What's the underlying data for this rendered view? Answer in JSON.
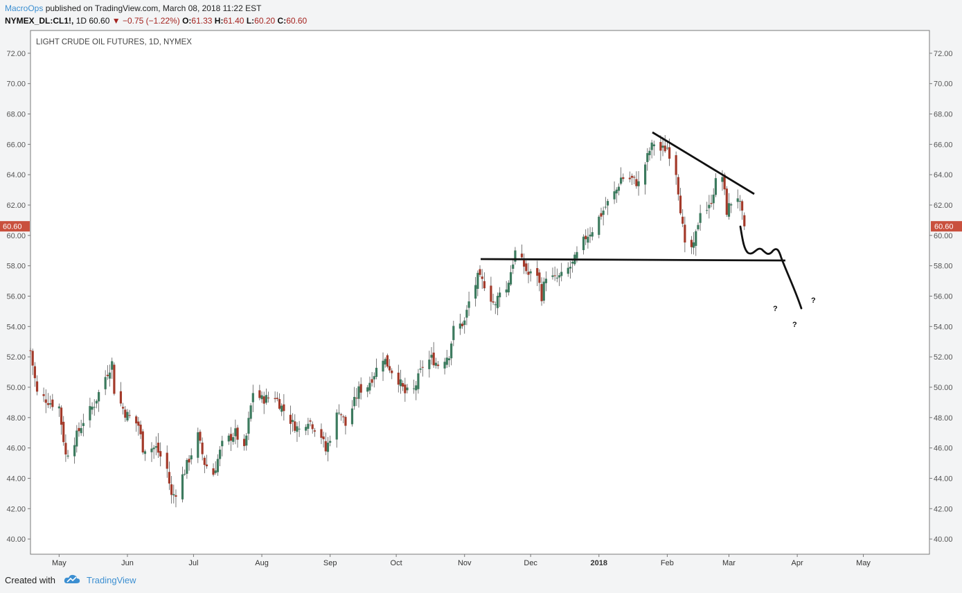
{
  "header": {
    "author": "MacroOps",
    "published": "published on TradingView.com, March 08, 2018 11:22 EST"
  },
  "symbol_bar": {
    "ticker": "NYMEX_DL:CL1!,",
    "interval": "1D",
    "price": "60.60",
    "direction_icon": "down-triangle-icon",
    "change": "−0.75 (−1.22%)",
    "open_label": "O:",
    "open": "61.33",
    "high_label": "H:",
    "high": "61.40",
    "low_label": "L:",
    "low": "60.20",
    "close_label": "C:",
    "close": "60.60"
  },
  "footer": {
    "created_with": "Created with",
    "brand": "TradingView"
  },
  "colors": {
    "up": "#3c7a5e",
    "down": "#a33a2a",
    "accent": "#3c8fd1",
    "price_tag": "#c9503d"
  },
  "chart_data": {
    "type": "candlestick",
    "title": "LIGHT CRUDE OIL FUTURES, 1D, NYMEX",
    "ylim": [
      39,
      73.5
    ],
    "yticks": [
      "40.00",
      "42.00",
      "44.00",
      "46.00",
      "48.00",
      "50.00",
      "52.00",
      "54.00",
      "56.00",
      "58.00",
      "60.00",
      "62.00",
      "64.00",
      "66.00",
      "68.00",
      "70.00",
      "72.00"
    ],
    "last_price_label": "60.60",
    "xrange": [
      "2017-04-18",
      "2018-05-31"
    ],
    "xticks": [
      {
        "date": "2017-05-01",
        "label": "May"
      },
      {
        "date": "2017-06-01",
        "label": "Jun"
      },
      {
        "date": "2017-07-01",
        "label": "Jul"
      },
      {
        "date": "2017-08-01",
        "label": "Aug"
      },
      {
        "date": "2017-09-01",
        "label": "Sep"
      },
      {
        "date": "2017-10-01",
        "label": "Oct"
      },
      {
        "date": "2017-11-01",
        "label": "Nov"
      },
      {
        "date": "2017-12-01",
        "label": "Dec"
      },
      {
        "date": "2018-01-01",
        "label": "2018",
        "bold": true
      },
      {
        "date": "2018-02-01",
        "label": "Feb"
      },
      {
        "date": "2018-03-01",
        "label": "Mar"
      },
      {
        "date": "2018-04-01",
        "label": "Apr"
      },
      {
        "date": "2018-05-01",
        "label": "May"
      }
    ],
    "close_anchors": [
      [
        "2017-04-18",
        52.4
      ],
      [
        "2017-04-21",
        49.6
      ],
      [
        "2017-04-27",
        49.0
      ],
      [
        "2017-05-01",
        48.7
      ],
      [
        "2017-05-04",
        45.5
      ],
      [
        "2017-05-08",
        46.5
      ],
      [
        "2017-05-12",
        47.8
      ],
      [
        "2017-05-17",
        48.9
      ],
      [
        "2017-05-22",
        50.7
      ],
      [
        "2017-05-25",
        51.6
      ],
      [
        "2017-05-26",
        49.8
      ],
      [
        "2017-05-31",
        48.3
      ],
      [
        "2017-06-06",
        47.5
      ],
      [
        "2017-06-08",
        46.0
      ],
      [
        "2017-06-14",
        46.0
      ],
      [
        "2017-06-19",
        44.6
      ],
      [
        "2017-06-21",
        42.8
      ],
      [
        "2017-06-23",
        43.1
      ],
      [
        "2017-06-27",
        44.5
      ],
      [
        "2017-07-03",
        46.8
      ],
      [
        "2017-07-06",
        45.0
      ],
      [
        "2017-07-10",
        44.3
      ],
      [
        "2017-07-14",
        46.2
      ],
      [
        "2017-07-20",
        47.0
      ],
      [
        "2017-07-24",
        45.8
      ],
      [
        "2017-07-28",
        49.7
      ],
      [
        "2017-08-01",
        49.2
      ],
      [
        "2017-08-07",
        49.4
      ],
      [
        "2017-08-10",
        48.7
      ],
      [
        "2017-08-15",
        47.6
      ],
      [
        "2017-08-18",
        47.2
      ],
      [
        "2017-08-22",
        47.9
      ],
      [
        "2017-08-28",
        46.8
      ],
      [
        "2017-08-30",
        45.8
      ],
      [
        "2017-09-05",
        48.6
      ],
      [
        "2017-09-08",
        47.5
      ],
      [
        "2017-09-14",
        49.8
      ],
      [
        "2017-09-18",
        50.1
      ],
      [
        "2017-09-25",
        52.0
      ],
      [
        "2017-09-27",
        51.5
      ],
      [
        "2017-10-02",
        50.5
      ],
      [
        "2017-10-05",
        49.6
      ],
      [
        "2017-10-09",
        49.8
      ],
      [
        "2017-10-13",
        51.4
      ],
      [
        "2017-10-17",
        51.9
      ],
      [
        "2017-10-20",
        51.5
      ],
      [
        "2017-10-25",
        52.2
      ],
      [
        "2017-10-27",
        53.8
      ],
      [
        "2017-11-01",
        54.3
      ],
      [
        "2017-11-03",
        55.6
      ],
      [
        "2017-11-07",
        57.2
      ],
      [
        "2017-11-10",
        56.8
      ],
      [
        "2017-11-15",
        55.3
      ],
      [
        "2017-11-17",
        56.5
      ],
      [
        "2017-11-20",
        56.4
      ],
      [
        "2017-11-24",
        58.9
      ],
      [
        "2017-11-28",
        58.0
      ],
      [
        "2017-11-30",
        57.4
      ],
      [
        "2017-12-04",
        57.5
      ],
      [
        "2017-12-06",
        56.0
      ],
      [
        "2017-12-08",
        57.4
      ],
      [
        "2017-12-12",
        57.1
      ],
      [
        "2017-12-15",
        57.3
      ],
      [
        "2017-12-20",
        58.1
      ],
      [
        "2017-12-26",
        59.9
      ],
      [
        "2017-12-29",
        60.4
      ],
      [
        "2018-01-04",
        61.9
      ],
      [
        "2018-01-09",
        63.0
      ],
      [
        "2018-01-11",
        63.8
      ],
      [
        "2018-01-16",
        63.7
      ],
      [
        "2018-01-19",
        63.4
      ],
      [
        "2018-01-24",
        65.6
      ],
      [
        "2018-01-26",
        66.1
      ],
      [
        "2018-01-29",
        65.6
      ],
      [
        "2018-02-01",
        65.8
      ],
      [
        "2018-02-05",
        64.2
      ],
      [
        "2018-02-07",
        61.8
      ],
      [
        "2018-02-09",
        59.2
      ],
      [
        "2018-02-13",
        59.2
      ],
      [
        "2018-02-16",
        61.7
      ],
      [
        "2018-02-20",
        61.8
      ],
      [
        "2018-02-23",
        63.5
      ],
      [
        "2018-02-26",
        63.9
      ],
      [
        "2018-02-28",
        61.6
      ],
      [
        "2018-03-02",
        62.2
      ],
      [
        "2018-03-05",
        62.6
      ],
      [
        "2018-03-07",
        61.3
      ],
      [
        "2018-03-08",
        60.6
      ]
    ]
  },
  "annotations": {
    "question_marks": [
      "?",
      "?",
      "?"
    ]
  }
}
